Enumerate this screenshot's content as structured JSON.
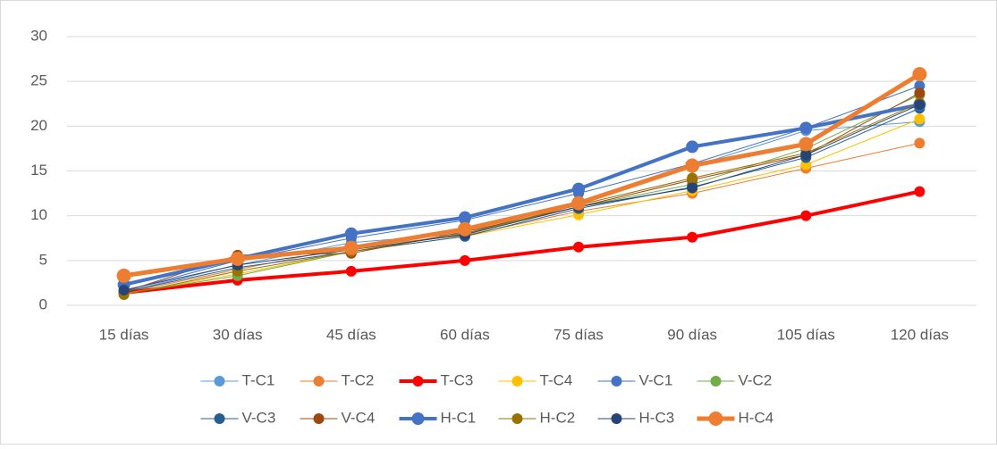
{
  "chart_data": {
    "type": "line",
    "categories": [
      "15 días",
      "30 días",
      "45 días",
      "60 días",
      "75 días",
      "90 días",
      "105 días",
      "120 días"
    ],
    "ylim": [
      0,
      30
    ],
    "yticks": [
      0,
      5,
      10,
      15,
      20,
      25,
      30
    ],
    "grid": true,
    "legend": "bottom",
    "series": [
      {
        "name": "T-C1",
        "color": "#5b9bd5",
        "line_width": 1,
        "marker_size": 6,
        "values": [
          1.5,
          4.5,
          7.0,
          8.0,
          11.5,
          15.5,
          19.5,
          20.5
        ]
      },
      {
        "name": "T-C2",
        "color": "#ed7d31",
        "line_width": 1,
        "marker_size": 6,
        "values": [
          1.4,
          4.0,
          6.5,
          7.8,
          10.5,
          12.5,
          15.3,
          18.1
        ]
      },
      {
        "name": "T-C3",
        "color": "#ff0000",
        "line_width": 4,
        "marker_size": 6,
        "values": [
          1.4,
          2.8,
          3.8,
          5.0,
          6.5,
          7.6,
          10.0,
          12.7
        ]
      },
      {
        "name": "T-C4",
        "color": "#ffc000",
        "line_width": 1,
        "marker_size": 6,
        "values": [
          1.3,
          3.5,
          6.0,
          7.7,
          10.1,
          12.8,
          15.7,
          20.8
        ]
      },
      {
        "name": "V-C1",
        "color": "#4472c4",
        "line_width": 1,
        "marker_size": 6,
        "values": [
          1.6,
          5.0,
          7.5,
          9.5,
          12.5,
          15.8,
          19.8,
          24.5
        ]
      },
      {
        "name": "V-C2",
        "color": "#70ad47",
        "line_width": 1,
        "marker_size": 6,
        "values": [
          1.3,
          3.3,
          6.0,
          8.0,
          11.0,
          13.5,
          17.5,
          23.5
        ]
      },
      {
        "name": "V-C3",
        "color": "#255e91",
        "line_width": 1,
        "marker_size": 6,
        "values": [
          1.5,
          4.2,
          6.0,
          7.7,
          10.8,
          13.2,
          16.5,
          22.0
        ]
      },
      {
        "name": "V-C4",
        "color": "#9e480e",
        "line_width": 1,
        "marker_size": 6,
        "values": [
          1.5,
          5.6,
          5.8,
          8.2,
          11.0,
          14.0,
          16.8,
          23.7
        ]
      },
      {
        "name": "H-C1",
        "color": "#4472c4",
        "line_width": 4,
        "marker_size": 7,
        "values": [
          2.3,
          5.2,
          8.0,
          9.8,
          13.0,
          17.7,
          19.8,
          22.4
        ]
      },
      {
        "name": "H-C2",
        "color": "#997300",
        "line_width": 1,
        "marker_size": 6,
        "values": [
          1.2,
          3.8,
          6.0,
          8.0,
          11.2,
          14.2,
          17.0,
          22.6
        ]
      },
      {
        "name": "H-C3",
        "color": "#264478",
        "line_width": 1,
        "marker_size": 6,
        "values": [
          1.7,
          4.5,
          6.2,
          7.9,
          11.0,
          13.1,
          16.8,
          22.4
        ]
      },
      {
        "name": "H-C4",
        "color": "#ed7d31",
        "line_width": 5,
        "marker_size": 8,
        "values": [
          3.3,
          5.2,
          6.4,
          8.5,
          11.4,
          15.6,
          18.0,
          25.8
        ]
      }
    ]
  }
}
